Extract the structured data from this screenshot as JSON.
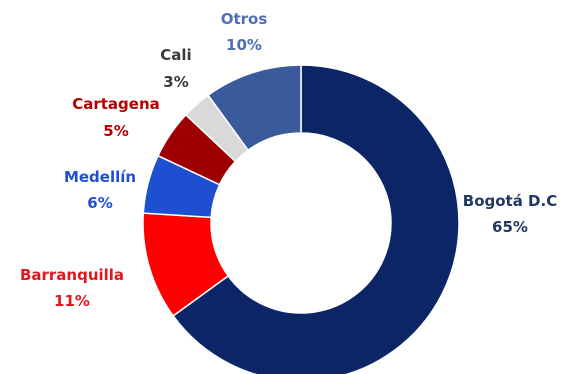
{
  "chart_data": {
    "type": "donut",
    "title": "",
    "start_angle_deg": 0,
    "direction": "clockwise",
    "slices": [
      {
        "label": "Bogotá D.C",
        "value": 65,
        "display": "65%",
        "color": "#0b2566",
        "label_color": "#1f3864"
      },
      {
        "label": "Barranquilla",
        "value": 11,
        "display": "11%",
        "color": "#ff0000",
        "label_color": "#e3161c"
      },
      {
        "label": "Medellín",
        "value": 6,
        "display": "6%",
        "color": "#1f4fd1",
        "label_color": "#1f4fd1"
      },
      {
        "label": "Cartagena",
        "value": 5,
        "display": "5%",
        "color": "#9e0000",
        "label_color": "#b30000"
      },
      {
        "label": "Cali",
        "value": 3,
        "display": "3%",
        "color": "#d9d9d9",
        "label_color": "#3a3a3a"
      },
      {
        "label": "Otros",
        "value": 10,
        "display": "10%",
        "color": "#3a5a9c",
        "label_color": "#4f6fb5"
      }
    ]
  }
}
